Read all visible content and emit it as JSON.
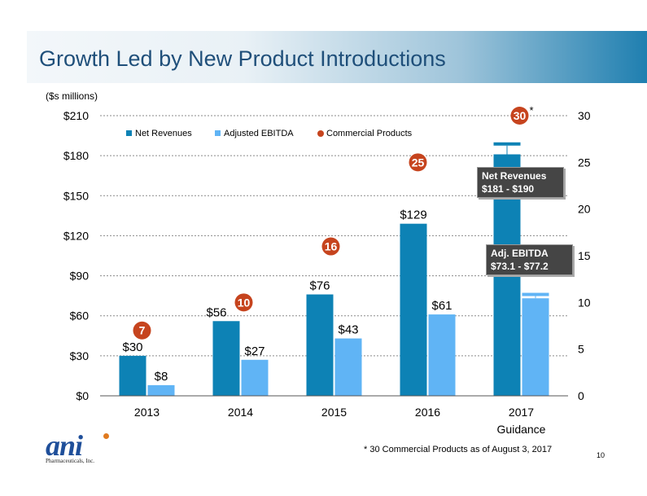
{
  "page": {
    "title": "Growth Led by New Product Introductions",
    "units_label": "($s millions)",
    "footnote": "* 30 Commercial Products as of August 3, 2017",
    "page_number": "10"
  },
  "logo": {
    "mark": "ani",
    "subtitle": "Pharmaceuticals, Inc."
  },
  "callouts": {
    "revenue_line1": "Net Revenues",
    "revenue_line2": "$181 - $190",
    "ebitda_line1": "Adj. EBITDA",
    "ebitda_line2": "$73.1 - $77.2"
  },
  "colors": {
    "net_revenues": "#0d82b5",
    "adjusted_ebitda": "#60b4f5",
    "commercial_products": "#c6441e",
    "title_text": "#1f4f7a"
  },
  "chart_data": {
    "type": "bar",
    "categories": [
      "2013",
      "2014",
      "2015",
      "2016",
      "2017"
    ],
    "category_sublabels": [
      "",
      "",
      "",
      "",
      "Guidance"
    ],
    "series": [
      {
        "name": "Net Revenues",
        "kind": "bar",
        "axis": "left",
        "values": [
          30,
          56,
          76,
          129,
          181
        ],
        "labels": [
          "$30",
          "$56",
          "$76",
          "$129",
          ""
        ]
      },
      {
        "name": "Adjusted EBITDA",
        "kind": "bar",
        "axis": "left",
        "values": [
          8,
          27,
          43,
          61,
          73.1
        ],
        "labels": [
          "$8",
          "$27",
          "$43",
          "$61",
          ""
        ]
      },
      {
        "name": "Commercial Products",
        "kind": "marker",
        "axis": "right",
        "values": [
          7,
          10,
          16,
          25,
          30
        ],
        "labels": [
          "7",
          "10",
          "16",
          "25",
          "30"
        ],
        "suffixes": [
          "",
          "",
          "",
          "",
          "*"
        ]
      }
    ],
    "ranges": [
      {
        "series": "Net Revenues",
        "category": "2017",
        "low": 181,
        "high": 190
      },
      {
        "series": "Adjusted EBITDA",
        "category": "2017",
        "low": 73.1,
        "high": 77.2
      }
    ],
    "y_left": {
      "lim": [
        0,
        210
      ],
      "ticks": [
        0,
        30,
        60,
        90,
        120,
        150,
        180,
        210
      ],
      "tick_labels": [
        "$0",
        "$30",
        "$60",
        "$90",
        "$120",
        "$150",
        "$180",
        "$210"
      ]
    },
    "y_right": {
      "lim": [
        0,
        30
      ],
      "ticks": [
        0,
        5,
        10,
        15,
        20,
        25,
        30
      ],
      "tick_labels": [
        "0",
        "5",
        "10",
        "15",
        "20",
        "25",
        "30"
      ]
    },
    "grid": true,
    "legend_position": "top-left"
  }
}
